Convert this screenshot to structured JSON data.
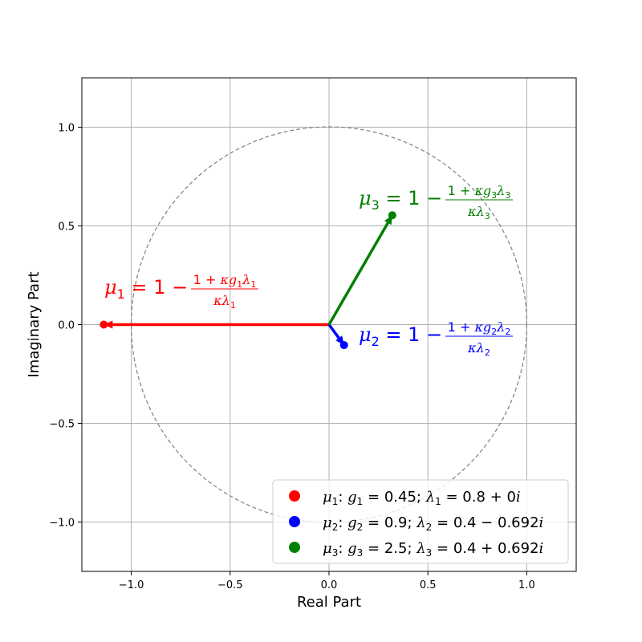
{
  "chart_data": {
    "type": "scatter",
    "xlabel": "Real Part",
    "ylabel": "Imaginary Part",
    "xlim": [
      -1.25,
      1.25
    ],
    "ylim": [
      -1.25,
      1.25
    ],
    "xticks": [
      -1.0,
      -0.5,
      0.0,
      0.5,
      1.0
    ],
    "yticks": [
      -1.0,
      -0.5,
      0.0,
      0.5,
      1.0
    ],
    "xtick_labels": [
      "−1.0",
      "−0.5",
      "0.0",
      "0.5",
      "1.0"
    ],
    "ytick_labels": [
      "−1.0",
      "−0.5",
      "0.0",
      "0.5",
      "1.0"
    ],
    "grid": true,
    "unit_circle": {
      "radius": 1.0,
      "style": "dashed",
      "color": "#808080"
    },
    "legend_position": "lower-right",
    "series": [
      {
        "name": "μ1: g1 = 0.45;  λ1 = 0.8 + 0i",
        "color": "#ff0000",
        "point": {
          "x": -1.139,
          "y": 0.0
        },
        "arrow": {
          "from": [
            0,
            0
          ],
          "to": [
            -1.139,
            0.0
          ]
        },
        "annotation": "μ1 = 1 − (1 + κg1λ1) / (κλ1)"
      },
      {
        "name": "μ2: g2 = 0.9;  λ2 = 0.4 − 0.692i",
        "color": "#0000ff",
        "point": {
          "x": 0.076,
          "y": -0.104
        },
        "arrow": {
          "from": [
            0,
            0
          ],
          "to": [
            0.076,
            -0.104
          ]
        },
        "annotation": "μ2 = 1 − (1 + κg2λ2) / (κλ2)"
      },
      {
        "name": "μ3:  g3 = 2.5;  λ3 = 0.4 + 0.692i",
        "color": "#008000",
        "point": {
          "x": 0.32,
          "y": 0.554
        },
        "arrow": {
          "from": [
            0,
            0
          ],
          "to": [
            0.32,
            0.554
          ]
        },
        "annotation": "μ3 = 1 − (1 + κg3λ3) / (κλ3)"
      }
    ]
  }
}
